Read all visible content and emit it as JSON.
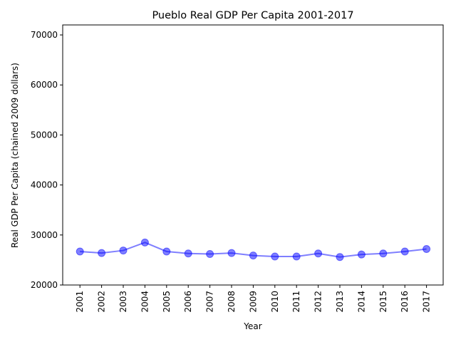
{
  "chart_data": {
    "type": "line",
    "title": "Pueblo Real GDP Per Capita 2001-2017",
    "xlabel": "Year",
    "ylabel": "Real GDP Per Capita (chained 2009 dollars)",
    "categories": [
      "2001",
      "2002",
      "2003",
      "2004",
      "2005",
      "2006",
      "2007",
      "2008",
      "2009",
      "2010",
      "2011",
      "2012",
      "2013",
      "2014",
      "2015",
      "2016",
      "2017"
    ],
    "series": [
      {
        "values": [
          26700,
          26400,
          26900,
          28500,
          26700,
          26300,
          26200,
          26400,
          25900,
          25700,
          25700,
          26300,
          25600,
          26100,
          26300,
          26700,
          27200
        ],
        "color": "#0000ff",
        "marker": "circle"
      }
    ],
    "ylim": [
      20000,
      72000
    ],
    "yticks": [
      20000,
      30000,
      40000,
      50000,
      60000,
      70000
    ],
    "grid": false,
    "legend": "none"
  }
}
